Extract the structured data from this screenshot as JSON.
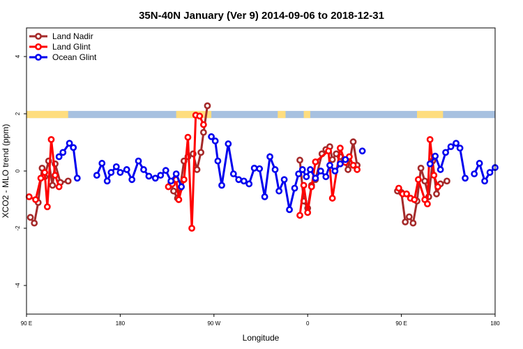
{
  "chart_data": {
    "type": "line",
    "title": "35N-40N January (Ver 9)   2014-09-06 to 2018-12-31",
    "xlabel": "Longitude",
    "ylabel": "XCO2 - MLO trend (ppm)",
    "xlim": [
      90,
      450
    ],
    "ylim": [
      -5,
      5
    ],
    "x_ticks": [
      {
        "value": 90,
        "label": "90 E"
      },
      {
        "value": 162,
        "label": "180"
      },
      {
        "value": 234,
        "label": "90 W"
      },
      {
        "value": 306,
        "label": "0"
      },
      {
        "value": 378,
        "label": "90 E"
      },
      {
        "value": 450,
        "label": "180"
      }
    ],
    "y_ticks": [
      {
        "value": -4,
        "label": "-4"
      },
      {
        "value": -2,
        "label": "-2"
      },
      {
        "value": 0,
        "label": "0"
      },
      {
        "value": 2,
        "label": "2"
      },
      {
        "value": 4,
        "label": "4"
      }
    ],
    "land_ocean_band": {
      "y_min": 1.85,
      "y_max": 2.1,
      "land_color": "#fedd7f",
      "ocean_color": "#a7c1e0"
    },
    "legend_position": "top-left",
    "series": [
      {
        "name": "Land Nadir",
        "color": "#a52a2a",
        "points": [
          [
            93,
            -1.62
          ],
          [
            96,
            -1.82
          ],
          [
            99,
            -1.1
          ],
          [
            102,
            0.1
          ],
          [
            104,
            -0.2
          ],
          [
            107,
            0.35
          ],
          [
            110,
            -0.5
          ],
          [
            112,
            0.25
          ],
          [
            116,
            -0.4
          ],
          [
            122,
            -0.35
          ],
          [
            201,
            -0.4
          ],
          [
            203,
            -0.7
          ],
          [
            206,
            -0.95
          ],
          [
            208,
            -0.6
          ],
          [
            211,
            0.35
          ],
          [
            214,
            0.5
          ],
          [
            218,
            0.6
          ],
          [
            221,
            0.05
          ],
          [
            224,
            0.65
          ],
          [
            226,
            1.35
          ],
          [
            229,
            2.28
          ],
          [
            300,
            0.38
          ],
          [
            303,
            -1.05
          ],
          [
            306,
            -1.3
          ],
          [
            309,
            -0.5
          ],
          [
            312,
            -0.3
          ],
          [
            317,
            0.6
          ],
          [
            320,
            0.75
          ],
          [
            323,
            0.85
          ],
          [
            325,
            0.4
          ],
          [
            328,
            0.6
          ],
          [
            331,
            0.5
          ],
          [
            334,
            0.4
          ],
          [
            337,
            0.05
          ],
          [
            341,
            1.02
          ],
          [
            344,
            0.2
          ],
          [
            375,
            -0.7
          ],
          [
            378,
            -0.75
          ],
          [
            381,
            -1.78
          ],
          [
            384,
            -1.6
          ],
          [
            387,
            -1.82
          ],
          [
            390,
            -1.05
          ],
          [
            393,
            0.1
          ],
          [
            396,
            -0.35
          ],
          [
            399,
            -0.9
          ],
          [
            402,
            0.35
          ],
          [
            405,
            -0.8
          ],
          [
            408,
            -0.45
          ],
          [
            413,
            -0.35
          ]
        ]
      },
      {
        "name": "Land Glint",
        "color": "#ff0000",
        "points": [
          [
            92,
            -0.9
          ],
          [
            97,
            -1.0
          ],
          [
            101,
            -0.25
          ],
          [
            104,
            -0.05
          ],
          [
            106,
            -1.25
          ],
          [
            109,
            1.1
          ],
          [
            112,
            -0.15
          ],
          [
            115,
            -0.55
          ],
          [
            199,
            -0.55
          ],
          [
            202,
            -0.45
          ],
          [
            205,
            -0.3
          ],
          [
            207,
            -1.0
          ],
          [
            211,
            -0.3
          ],
          [
            214,
            1.18
          ],
          [
            217,
            -2.0
          ],
          [
            220,
            1.95
          ],
          [
            223,
            1.92
          ],
          [
            226,
            1.62
          ],
          [
            300,
            -1.55
          ],
          [
            303,
            -0.5
          ],
          [
            306,
            -1.45
          ],
          [
            309,
            -0.55
          ],
          [
            312,
            0.32
          ],
          [
            322,
            0.7
          ],
          [
            325,
            -0.95
          ],
          [
            331,
            0.8
          ],
          [
            335,
            0.3
          ],
          [
            338,
            0.5
          ],
          [
            341,
            0.2
          ],
          [
            344,
            0.05
          ],
          [
            376,
            -0.6
          ],
          [
            379,
            -0.8
          ],
          [
            382,
            -0.8
          ],
          [
            385,
            -0.95
          ],
          [
            388,
            -1.0
          ],
          [
            391,
            -0.3
          ],
          [
            396,
            -1.0
          ],
          [
            398,
            -1.15
          ],
          [
            400,
            1.1
          ],
          [
            403,
            -0.15
          ],
          [
            406,
            -0.55
          ]
        ]
      },
      {
        "name": "Ocean Glint",
        "color": "#0000ee",
        "points": [
          [
            115,
            0.5
          ],
          [
            118,
            0.65
          ],
          [
            123,
            0.97
          ],
          [
            126,
            0.82
          ],
          [
            129,
            -0.25
          ],
          [
            144,
            -0.15
          ],
          [
            148,
            0.27
          ],
          [
            152,
            -0.35
          ],
          [
            155,
            -0.05
          ],
          [
            159,
            0.15
          ],
          [
            162,
            -0.05
          ],
          [
            167,
            0.05
          ],
          [
            171,
            -0.3
          ],
          [
            176,
            0.35
          ],
          [
            180,
            0.05
          ],
          [
            184,
            -0.18
          ],
          [
            189,
            -0.25
          ],
          [
            193,
            -0.15
          ],
          [
            197,
            0.02
          ],
          [
            201,
            -0.35
          ],
          [
            205,
            -0.1
          ],
          [
            209,
            -0.55
          ],
          [
            232,
            1.2
          ],
          [
            235,
            1.05
          ],
          [
            237,
            0.35
          ],
          [
            240,
            -0.5
          ],
          [
            245,
            0.95
          ],
          [
            249,
            -0.1
          ],
          [
            253,
            -0.3
          ],
          [
            257,
            -0.35
          ],
          [
            261,
            -0.45
          ],
          [
            265,
            0.1
          ],
          [
            269,
            0.08
          ],
          [
            273,
            -0.9
          ],
          [
            277,
            0.5
          ],
          [
            281,
            0.05
          ],
          [
            284,
            -0.7
          ],
          [
            288,
            -0.3
          ],
          [
            292,
            -1.35
          ],
          [
            296,
            -0.6
          ],
          [
            299,
            -0.1
          ],
          [
            302,
            0.05
          ],
          [
            305,
            -0.2
          ],
          [
            308,
            0.05
          ],
          [
            312,
            -0.25
          ],
          [
            316,
            0.0
          ],
          [
            320,
            -0.2
          ],
          [
            323,
            0.2
          ],
          [
            327,
            0.0
          ],
          [
            331,
            0.25
          ],
          [
            335,
            0.4
          ],
          [
            348,
            0.7
          ],
          [
            400,
            0.25
          ],
          [
            404,
            0.52
          ],
          [
            408,
            0.05
          ],
          [
            412,
            0.65
          ],
          [
            416,
            0.85
          ],
          [
            420,
            0.97
          ],
          [
            423,
            0.8
          ],
          [
            427,
            -0.25
          ],
          [
            434,
            -0.1
          ],
          [
            438,
            0.27
          ],
          [
            442,
            -0.35
          ],
          [
            446,
            -0.05
          ],
          [
            450,
            0.12
          ]
        ],
        "breaks_after": [
          129,
          209,
          335,
          348,
          427
        ]
      }
    ]
  }
}
